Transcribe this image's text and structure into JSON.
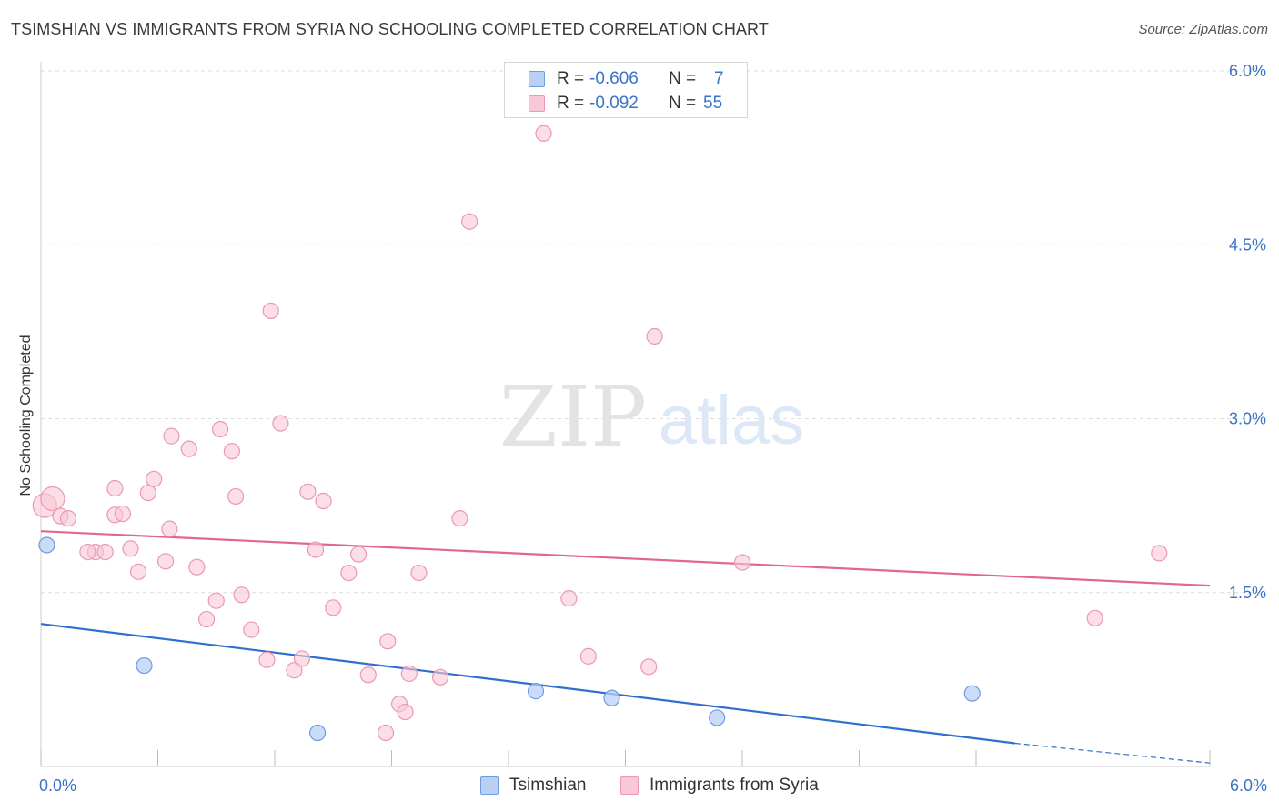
{
  "title": "TSIMSHIAN VS IMMIGRANTS FROM SYRIA NO SCHOOLING COMPLETED CORRELATION CHART",
  "source": "Source: ZipAtlas.com",
  "watermark": {
    "zip": "ZIP",
    "atlas": "atlas"
  },
  "legend": {
    "r_label": "R =",
    "n_label": "N =",
    "rows": [
      {
        "name": "Tsimshian",
        "r": "-0.606",
        "n": "7"
      },
      {
        "name": "Immigrants from Syria",
        "r": "-0.092",
        "n": "55"
      }
    ]
  },
  "colors": {
    "tsimshian_fill": "#b8d0f4",
    "tsimshian_stroke": "#6f9be0",
    "tsimshian_line": "#2f6fd0",
    "syria_fill": "#f9c8d6",
    "syria_stroke": "#ec98b2",
    "syria_line": "#e06890",
    "tick_label": "#3a73c8",
    "grid": "#dddddd"
  },
  "chart_data": {
    "type": "scatter",
    "title": "TSIMSHIAN VS IMMIGRANTS FROM SYRIA NO SCHOOLING COMPLETED CORRELATION CHART",
    "xlabel": "",
    "ylabel": "No Schooling Completed",
    "xlim": [
      0,
      6
    ],
    "ylim": [
      0,
      6
    ],
    "x_tick_labels": [
      "0.0%",
      "6.0%"
    ],
    "y_ticks": [
      1.5,
      3.0,
      4.5,
      6.0
    ],
    "y_tick_labels": [
      "1.5%",
      "3.0%",
      "4.5%",
      "6.0%"
    ],
    "grid": "horizontal dashed",
    "legend_placement": "top-center",
    "series": [
      {
        "name": "Tsimshian",
        "points": [
          [
            0.03,
            1.91
          ],
          [
            0.53,
            0.87
          ],
          [
            1.42,
            0.29
          ],
          [
            2.54,
            0.65
          ],
          [
            2.93,
            0.59
          ],
          [
            3.47,
            0.42
          ],
          [
            4.78,
            0.63
          ]
        ],
        "trend": {
          "x0": 0.0,
          "y0": 1.23,
          "x1": 5.0,
          "y1": 0.2,
          "dashed_to_x": 6.0,
          "dashed_to_y": 0.03
        }
      },
      {
        "name": "Immigrants from Syria",
        "points": [
          [
            0.02,
            2.25
          ],
          [
            0.06,
            2.31
          ],
          [
            0.1,
            2.16
          ],
          [
            0.28,
            1.85
          ],
          [
            0.24,
            1.85
          ],
          [
            0.33,
            1.85
          ],
          [
            0.38,
            2.17
          ],
          [
            0.38,
            2.4
          ],
          [
            0.42,
            2.18
          ],
          [
            0.46,
            1.88
          ],
          [
            0.5,
            1.68
          ],
          [
            0.55,
            2.36
          ],
          [
            0.58,
            2.48
          ],
          [
            0.64,
            1.77
          ],
          [
            0.66,
            2.05
          ],
          [
            0.67,
            2.85
          ],
          [
            0.76,
            2.74
          ],
          [
            0.8,
            1.72
          ],
          [
            0.85,
            1.27
          ],
          [
            0.9,
            1.43
          ],
          [
            0.92,
            2.91
          ],
          [
            0.98,
            2.72
          ],
          [
            1.0,
            2.33
          ],
          [
            1.03,
            1.48
          ],
          [
            1.08,
            1.18
          ],
          [
            1.16,
            0.92
          ],
          [
            1.18,
            3.93
          ],
          [
            1.23,
            2.96
          ],
          [
            1.3,
            0.83
          ],
          [
            1.34,
            0.93
          ],
          [
            1.37,
            2.37
          ],
          [
            1.41,
            1.87
          ],
          [
            1.45,
            2.29
          ],
          [
            1.5,
            1.37
          ],
          [
            1.58,
            1.67
          ],
          [
            1.63,
            1.83
          ],
          [
            1.68,
            0.79
          ],
          [
            1.78,
            1.08
          ],
          [
            1.77,
            0.29
          ],
          [
            1.84,
            0.54
          ],
          [
            1.87,
            0.47
          ],
          [
            1.89,
            0.8
          ],
          [
            1.94,
            1.67
          ],
          [
            2.05,
            0.77
          ],
          [
            2.15,
            2.14
          ],
          [
            2.2,
            4.7
          ],
          [
            2.58,
            5.46
          ],
          [
            2.71,
            1.45
          ],
          [
            2.81,
            0.95
          ],
          [
            3.12,
            0.86
          ],
          [
            3.15,
            3.71
          ],
          [
            3.6,
            1.76
          ],
          [
            5.41,
            1.28
          ],
          [
            5.74,
            1.84
          ],
          [
            0.14,
            2.14
          ]
        ],
        "trend": {
          "x0": 0.0,
          "y0": 2.03,
          "x1": 6.0,
          "y1": 1.56
        }
      }
    ]
  }
}
